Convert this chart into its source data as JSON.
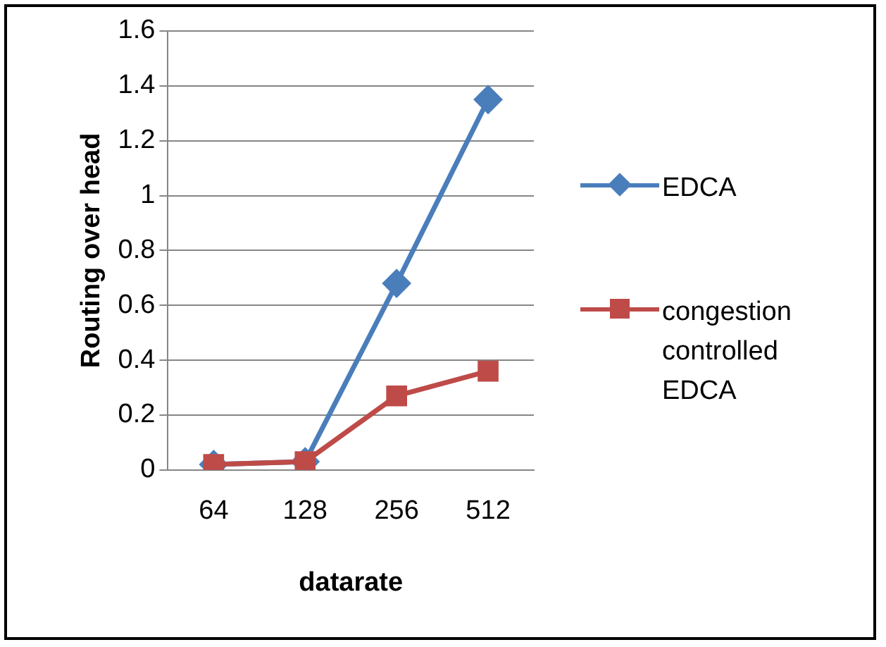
{
  "chart_data": {
    "type": "line",
    "xlabel": "datarate",
    "ylabel": "Routing over head",
    "categories": [
      "64",
      "128",
      "256",
      "512"
    ],
    "series": [
      {
        "name": "EDCA",
        "color": "#4a7ebb",
        "marker": "diamond",
        "values": [
          0.02,
          0.03,
          0.68,
          1.35
        ]
      },
      {
        "name": "congestion controlled EDCA",
        "color": "#be4b48",
        "marker": "square",
        "values": [
          0.02,
          0.03,
          0.27,
          0.36
        ]
      }
    ],
    "ylim": [
      0,
      1.6
    ],
    "yticks": [
      0,
      0.2,
      0.4,
      0.6,
      0.8,
      1,
      1.2,
      1.4,
      1.6
    ],
    "grid": "y",
    "legend": "right",
    "line_style": "solid"
  }
}
